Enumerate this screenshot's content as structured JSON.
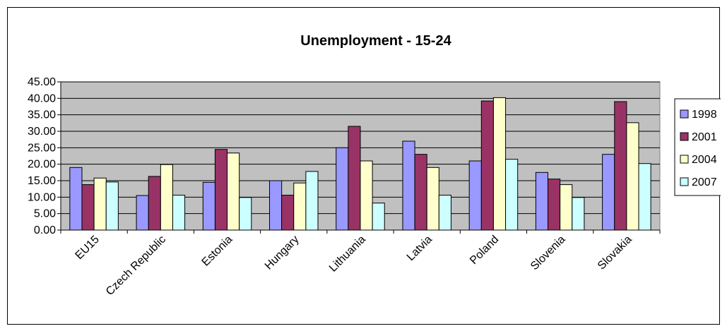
{
  "chart_data": {
    "type": "bar",
    "title": "Unemployment - 15-24",
    "xlabel": "",
    "ylabel": "",
    "ylim": [
      0,
      45
    ],
    "ytick_step": 5,
    "ytick_labels": [
      "0.00",
      "5.00",
      "10.00",
      "15.00",
      "20.00",
      "25.00",
      "30.00",
      "35.00",
      "40.00",
      "45.00"
    ],
    "grid": true,
    "legend_position": "right",
    "categories": [
      "EU15",
      "Czech Republic",
      "Estonia",
      "Hungary",
      "Lithuania",
      "Latvia",
      "Poland",
      "Slovenia",
      "Slovakia"
    ],
    "series": [
      {
        "name": "1998",
        "color": "#9999FF",
        "values": [
          19.0,
          10.5,
          14.5,
          15.0,
          25.0,
          27.0,
          21.0,
          17.5,
          23.0
        ]
      },
      {
        "name": "2001",
        "color": "#993366",
        "values": [
          13.8,
          16.3,
          24.5,
          10.6,
          31.5,
          23.0,
          39.2,
          15.5,
          39.0
        ]
      },
      {
        "name": "2004",
        "color": "#FFFFCC",
        "values": [
          15.8,
          19.9,
          23.4,
          14.3,
          21.0,
          19.0,
          40.2,
          13.8,
          32.6
        ]
      },
      {
        "name": "2007",
        "color": "#CCFFFF",
        "values": [
          14.6,
          10.6,
          9.9,
          17.8,
          8.2,
          10.6,
          21.5,
          9.9,
          20.2
        ]
      }
    ],
    "plot_background": "#C0C0C0"
  }
}
